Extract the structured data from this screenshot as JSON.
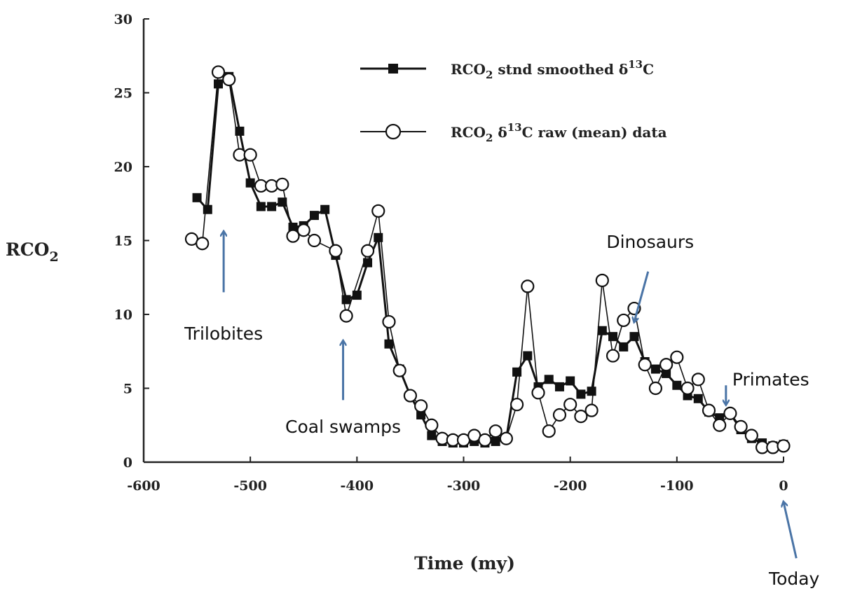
{
  "chart_data": {
    "type": "line",
    "title": "",
    "xlabel": "Time (my)",
    "ylabel_main": "RCO",
    "ylabel_sub": "2",
    "xlim": [
      -600,
      0
    ],
    "ylim": [
      0,
      30
    ],
    "x_ticks": [
      -600,
      -500,
      -400,
      -300,
      -200,
      -100,
      0
    ],
    "y_ticks": [
      0,
      5,
      10,
      15,
      20,
      25,
      30
    ],
    "grid": false,
    "legend_position": "top-right",
    "legend": [
      {
        "prefix": "RCO",
        "sub": "2",
        "mid": " stnd smoothed δ",
        "sup": "13",
        "suffix": "C",
        "marker": "filled-square"
      },
      {
        "prefix": "RCO",
        "sub": "2",
        "mid": " δ",
        "sup": "13",
        "suffix": "C raw (mean) data",
        "marker": "open-circle"
      }
    ],
    "series": [
      {
        "name": "RCO2 stnd smoothed δ13C",
        "marker": "filled-square",
        "color": "#111111",
        "x": [
          -550,
          -540,
          -530,
          -520,
          -510,
          -500,
          -490,
          -480,
          -470,
          -460,
          -450,
          -440,
          -430,
          -420,
          -410,
          -400,
          -390,
          -380,
          -370,
          -360,
          -350,
          -340,
          -330,
          -320,
          -310,
          -300,
          -290,
          -280,
          -270,
          -260,
          -250,
          -240,
          -230,
          -220,
          -210,
          -200,
          -190,
          -180,
          -170,
          -160,
          -150,
          -140,
          -130,
          -120,
          -110,
          -100,
          -90,
          -80,
          -70,
          -60,
          -50,
          -40,
          -30,
          -20,
          -10,
          0
        ],
        "values": [
          17.9,
          17.1,
          25.6,
          26.1,
          22.4,
          18.9,
          17.3,
          17.3,
          17.6,
          15.9,
          16.0,
          16.7,
          17.1,
          14.0,
          11.0,
          11.3,
          13.5,
          15.2,
          8.0,
          6.3,
          4.5,
          3.2,
          1.8,
          1.4,
          1.3,
          1.3,
          1.4,
          1.3,
          1.4,
          1.6,
          6.1,
          7.2,
          5.1,
          5.6,
          5.1,
          5.5,
          4.6,
          4.8,
          8.9,
          8.5,
          7.8,
          8.5,
          6.8,
          6.3,
          6.0,
          5.2,
          4.5,
          4.3,
          3.4,
          3.0,
          3.3,
          2.2,
          1.6,
          1.3,
          1.1,
          1.2
        ]
      },
      {
        "name": "RCO2 δ13C raw (mean) data",
        "marker": "open-circle",
        "color": "#111111",
        "x": [
          -555,
          -545,
          -530,
          -520,
          -510,
          -500,
          -490,
          -480,
          -470,
          -460,
          -450,
          -440,
          -420,
          -410,
          -390,
          -380,
          -370,
          -360,
          -350,
          -340,
          -330,
          -320,
          -310,
          -300,
          -290,
          -280,
          -270,
          -260,
          -250,
          -240,
          -230,
          -220,
          -210,
          -200,
          -190,
          -180,
          -170,
          -160,
          -150,
          -140,
          -130,
          -120,
          -110,
          -100,
          -90,
          -80,
          -70,
          -60,
          -50,
          -40,
          -30,
          -20,
          -10,
          0
        ],
        "values": [
          15.1,
          14.8,
          26.4,
          25.9,
          20.8,
          20.8,
          18.7,
          18.7,
          18.8,
          15.3,
          15.7,
          15.0,
          14.3,
          9.9,
          14.3,
          17.0,
          9.5,
          6.2,
          4.5,
          3.8,
          2.5,
          1.6,
          1.5,
          1.5,
          1.8,
          1.5,
          2.1,
          1.6,
          3.9,
          11.9,
          4.7,
          2.1,
          3.2,
          3.9,
          3.1,
          3.5,
          12.3,
          7.2,
          9.6,
          10.4,
          6.6,
          5.0,
          6.6,
          7.1,
          5.0,
          5.6,
          3.5,
          2.5,
          3.3,
          2.4,
          1.8,
          1.0,
          1.0,
          1.1
        ]
      }
    ],
    "annotations": [
      {
        "text": "Trilobites",
        "x": -525,
        "y": 8.3,
        "arrow_from": [
          -525,
          11.5
        ],
        "arrow_to": [
          -525,
          15.6
        ],
        "color": "#4a74a6"
      },
      {
        "text": "Coal swamps",
        "x": -413,
        "y": 2.0,
        "arrow_from": [
          -413,
          4.2
        ],
        "arrow_to": [
          -413,
          8.2
        ],
        "color": "#4a74a6"
      },
      {
        "text": "Dinosaurs",
        "x": -125,
        "y": 14.5,
        "arrow_from": [
          -127,
          12.9
        ],
        "arrow_to": [
          -140,
          9.5
        ],
        "color": "#4a74a6"
      },
      {
        "text": "Primates",
        "x": -12,
        "y": 5.2,
        "arrow_from": [
          -54,
          5.2
        ],
        "arrow_to": [
          -54,
          3.9
        ],
        "color": "#4a74a6"
      },
      {
        "text": "Today",
        "x": 10,
        "y": -8.3,
        "arrow_from": [
          12,
          -6.5
        ],
        "arrow_to": [
          0,
          -2.7
        ],
        "color": "#4a74a6"
      }
    ]
  }
}
